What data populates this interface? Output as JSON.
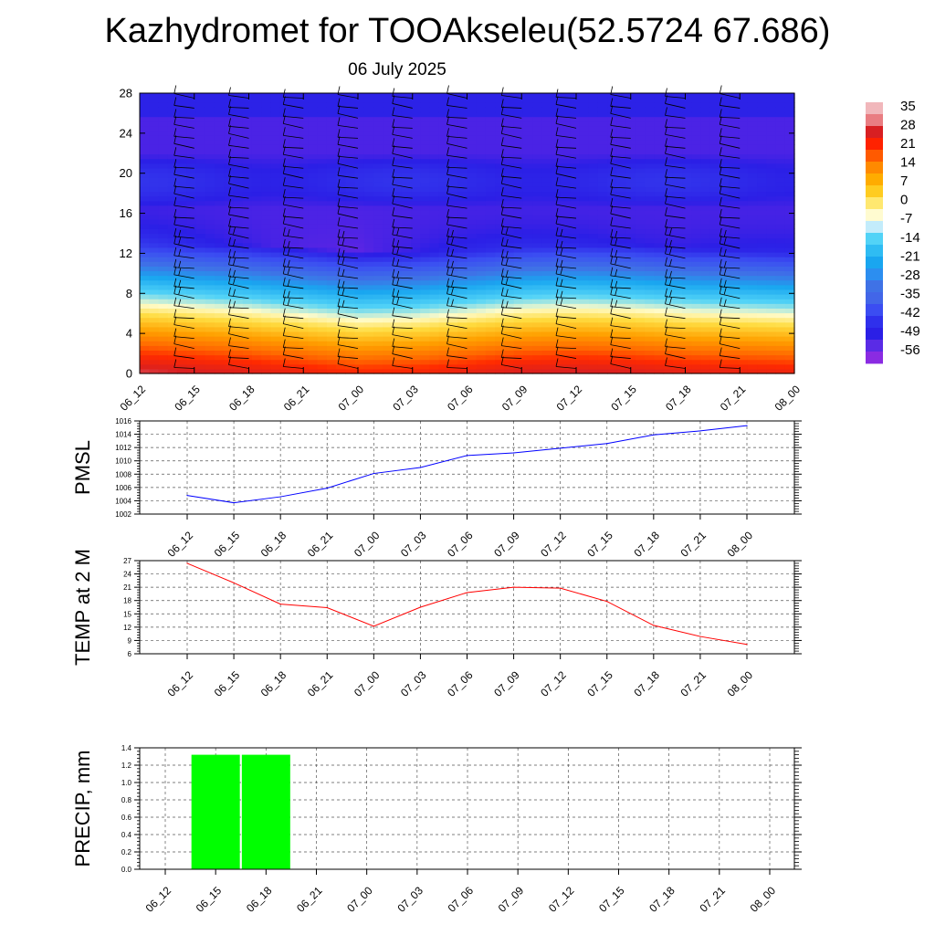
{
  "page": {
    "title": "Kazhydromet for TOOAkseleu(52.5724 67.686)",
    "subtitle": "06 July 2025"
  },
  "chart_data": [
    {
      "type": "heatmap",
      "description": "Time-height cross-section of temperature with wind barbs",
      "x_ticks": [
        "06_12",
        "06_15",
        "06_18",
        "06_21",
        "07_00",
        "07_03",
        "07_06",
        "07_09",
        "07_12",
        "07_15",
        "07_18",
        "07_21",
        "08_00"
      ],
      "y_ticks": [
        "0",
        "4",
        "8",
        "12",
        "16",
        "20",
        "24",
        "28"
      ],
      "ylim": [
        0,
        28
      ],
      "colorbar_labels": [
        "35",
        "28",
        "21",
        "14",
        "7",
        "0",
        "-7",
        "-14",
        "-21",
        "-28",
        "-35",
        "-42",
        "-49",
        "-56"
      ],
      "colorbar_stops": [
        {
          "value": 38,
          "color": "#f2b4b8"
        },
        {
          "value": 30,
          "color": "#d81f22"
        },
        {
          "value": 21,
          "color": "#ff2a00"
        },
        {
          "value": 14,
          "color": "#ff6a00"
        },
        {
          "value": 5,
          "color": "#ffa000"
        },
        {
          "value": -5,
          "color": "#ffdc40"
        },
        {
          "value": -12,
          "color": "#fffbc8"
        },
        {
          "value": -20,
          "color": "#52d3f7"
        },
        {
          "value": -30,
          "color": "#19a6f0"
        },
        {
          "value": -38,
          "color": "#3f72e6"
        },
        {
          "value": -47,
          "color": "#3b4df2"
        },
        {
          "value": -54,
          "color": "#2b1fe6"
        },
        {
          "value": -60,
          "color": "#8a2be2"
        }
      ],
      "surface_temperature": [
        33,
        31,
        29,
        26,
        23,
        24,
        27,
        30,
        31,
        30,
        28,
        27,
        26
      ],
      "lapse_rate_per_km": 6.5,
      "tropopause_km": 12.5,
      "stratosphere_temperature": -56
    },
    {
      "type": "line",
      "ylabel": "PMSL",
      "categories": [
        "06_12",
        "06_15",
        "06_18",
        "06_21",
        "07_00",
        "07_03",
        "07_06",
        "07_09",
        "07_12",
        "07_15",
        "07_18",
        "07_21",
        "08_00"
      ],
      "series": [
        {
          "color": "#0000ff",
          "values": [
            1004.8,
            1003.7,
            1004.6,
            1005.9,
            1008.1,
            1009.0,
            1010.8,
            1011.2,
            1011.9,
            1012.6,
            1013.9,
            1014.5,
            1015.3
          ]
        }
      ],
      "ylim": [
        1002,
        1016
      ],
      "y_ticks": [
        "1002",
        "1004",
        "1006",
        "1008",
        "1010",
        "1012",
        "1014",
        "1016"
      ],
      "grid": true
    },
    {
      "type": "line",
      "ylabel": "TEMP at 2 M",
      "categories": [
        "06_12",
        "06_15",
        "06_18",
        "06_21",
        "07_00",
        "07_03",
        "07_06",
        "07_09",
        "07_12",
        "07_15",
        "07_18",
        "07_21",
        "08_00"
      ],
      "series": [
        {
          "color": "#ff0000",
          "values": [
            26.4,
            22.0,
            17.2,
            16.4,
            12.2,
            16.5,
            19.8,
            21.0,
            20.8,
            17.8,
            12.4,
            9.9,
            8.1
          ]
        }
      ],
      "ylim": [
        6,
        27
      ],
      "y_ticks": [
        "6",
        "9",
        "12",
        "15",
        "18",
        "21",
        "24",
        "27"
      ],
      "grid": true
    },
    {
      "type": "bar",
      "ylabel": "PRECIP, mm",
      "categories": [
        "06_12",
        "06_15",
        "06_18",
        "06_21",
        "07_00",
        "07_03",
        "07_06",
        "07_09",
        "07_12",
        "07_15",
        "07_18",
        "07_21",
        "08_00"
      ],
      "series": [
        {
          "color": "#00ff00",
          "values": [
            0,
            1.32,
            1.32,
            0,
            0,
            0,
            0,
            0,
            0,
            0,
            0,
            0,
            0
          ]
        }
      ],
      "ylim": [
        0,
        1.4
      ],
      "y_ticks": [
        "0.0",
        "0.2",
        "0.4",
        "0.6",
        "0.8",
        "1.0",
        "1.2",
        "1.4"
      ],
      "grid": true
    }
  ]
}
